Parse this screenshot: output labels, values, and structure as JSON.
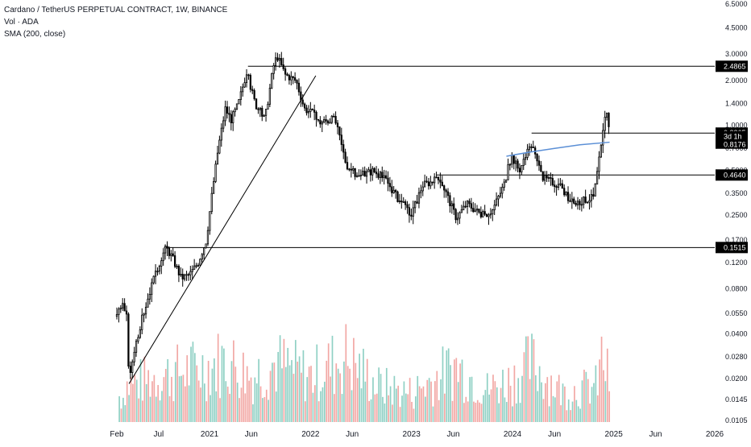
{
  "legend": {
    "symbol_line": "Cardano / TetherUS PERPETUAL CONTRACT, 1W, BINANCE",
    "volume_line": "Vol · ADA",
    "sma_line": "SMA (200, close)"
  },
  "colors": {
    "candle": "#000000",
    "trendline": "#000000",
    "sma": "#5b8fd6",
    "vol_up": "#8fd0c4",
    "vol_down": "#f2a7a4",
    "axis_text": "#131722",
    "badge_bg": "#000000",
    "badge_text": "#ffffff"
  },
  "chart_data": {
    "type": "line",
    "y_scale": "log",
    "y_range": [
      0.0105,
      6.5
    ],
    "y_tick_labels": [
      "6.5000",
      "4.5000",
      "3.0000",
      "2.0000",
      "1.4000",
      "1.0000",
      "0.7000",
      "0.5000",
      "0.3500",
      "0.2500",
      "0.1700",
      "0.1200",
      "0.0800",
      "0.0550",
      "0.0400",
      "0.0280",
      "0.0200",
      "0.0145",
      "0.0105"
    ],
    "x_tick_labels": [
      "Feb",
      "Jul",
      "2021",
      "Jun",
      "2022",
      "Jun",
      "2023",
      "Jun",
      "2024",
      "Jun",
      "2025",
      "Jun",
      "2026"
    ],
    "x_ticks": [
      "2020-02",
      "2020-07",
      "2021-01",
      "2021-06",
      "2022-01",
      "2022-06",
      "2023-01",
      "2023-06",
      "2024-01",
      "2024-06",
      "2025-01",
      "2025-06",
      "2026-01"
    ],
    "price_path": [
      {
        "date": "2020-02-01",
        "price": 0.055
      },
      {
        "date": "2020-02-20",
        "price": 0.062
      },
      {
        "date": "2020-03-10",
        "price": 0.05
      },
      {
        "date": "2020-03-16",
        "price": 0.018
      },
      {
        "date": "2020-04-01",
        "price": 0.03
      },
      {
        "date": "2020-05-01",
        "price": 0.05
      },
      {
        "date": "2020-06-01",
        "price": 0.08
      },
      {
        "date": "2020-06-20",
        "price": 0.1
      },
      {
        "date": "2020-07-10",
        "price": 0.13
      },
      {
        "date": "2020-07-28",
        "price": 0.152
      },
      {
        "date": "2020-08-20",
        "price": 0.13
      },
      {
        "date": "2020-09-20",
        "price": 0.095
      },
      {
        "date": "2020-10-20",
        "price": 0.1
      },
      {
        "date": "2020-11-20",
        "price": 0.12
      },
      {
        "date": "2020-12-20",
        "price": 0.17
      },
      {
        "date": "2021-01-10",
        "price": 0.35
      },
      {
        "date": "2021-02-01",
        "price": 0.7
      },
      {
        "date": "2021-02-27",
        "price": 1.3
      },
      {
        "date": "2021-03-20",
        "price": 1.1
      },
      {
        "date": "2021-04-15",
        "price": 1.4
      },
      {
        "date": "2021-05-15",
        "price": 2.3
      },
      {
        "date": "2021-06-15",
        "price": 1.4
      },
      {
        "date": "2021-07-20",
        "price": 1.1
      },
      {
        "date": "2021-08-20",
        "price": 2.5
      },
      {
        "date": "2021-09-02",
        "price": 2.95
      },
      {
        "date": "2021-10-01",
        "price": 2.2
      },
      {
        "date": "2021-11-10",
        "price": 2.0
      },
      {
        "date": "2021-12-10",
        "price": 1.3
      },
      {
        "date": "2022-01-10",
        "price": 1.2
      },
      {
        "date": "2022-01-30",
        "price": 1.05
      },
      {
        "date": "2022-03-30",
        "price": 1.1
      },
      {
        "date": "2022-05-10",
        "price": 0.55
      },
      {
        "date": "2022-06-20",
        "price": 0.45
      },
      {
        "date": "2022-08-15",
        "price": 0.5
      },
      {
        "date": "2022-10-01",
        "price": 0.43
      },
      {
        "date": "2022-11-15",
        "price": 0.32
      },
      {
        "date": "2022-12-31",
        "price": 0.25
      },
      {
        "date": "2023-02-10",
        "price": 0.4
      },
      {
        "date": "2023-04-15",
        "price": 0.44
      },
      {
        "date": "2023-06-12",
        "price": 0.24
      },
      {
        "date": "2023-07-20",
        "price": 0.3
      },
      {
        "date": "2023-09-15",
        "price": 0.25
      },
      {
        "date": "2023-10-20",
        "price": 0.27
      },
      {
        "date": "2023-12-01",
        "price": 0.4
      },
      {
        "date": "2023-12-28",
        "price": 0.63
      },
      {
        "date": "2024-01-25",
        "price": 0.5
      },
      {
        "date": "2024-03-10",
        "price": 0.75
      },
      {
        "date": "2024-04-15",
        "price": 0.45
      },
      {
        "date": "2024-06-15",
        "price": 0.4
      },
      {
        "date": "2024-08-05",
        "price": 0.3
      },
      {
        "date": "2024-10-20",
        "price": 0.33
      },
      {
        "date": "2024-11-20",
        "price": 0.8
      },
      {
        "date": "2024-12-03",
        "price": 1.33
      },
      {
        "date": "2024-12-17",
        "price": 0.94
      }
    ],
    "sma_series": [
      {
        "date": "2023-12-10",
        "value": 0.62
      },
      {
        "date": "2024-03-01",
        "value": 0.66
      },
      {
        "date": "2024-06-01",
        "value": 0.7
      },
      {
        "date": "2024-09-01",
        "value": 0.74
      },
      {
        "date": "2024-12-17",
        "value": 0.77
      }
    ],
    "trendline": {
      "start": {
        "date": "2020-03-16",
        "price": 0.0185
      },
      "end": {
        "date": "2022-01-20",
        "price": 2.15
      }
    },
    "levels": [
      {
        "price": 2.4865,
        "label": "2.4865",
        "from": "2021-05-20"
      },
      {
        "price": 0.8865,
        "label": "0.8865",
        "from": "2024-03-10"
      },
      {
        "price": 0.464,
        "label": "0.4640",
        "from": "2023-04-01"
      },
      {
        "price": 0.1515,
        "label": "0.1515",
        "from": "2020-07-20"
      }
    ],
    "price_badges": [
      {
        "price": 0.8865,
        "label": "0.8865"
      },
      {
        "price": 0.8176,
        "label": "0.8176"
      }
    ],
    "countdown_label": "3d 1h",
    "volume_profile": [
      {
        "date": "2020-03-01",
        "relative": 0.55
      },
      {
        "date": "2020-07-01",
        "relative": 0.7
      },
      {
        "date": "2021-01-01",
        "relative": 0.85
      },
      {
        "date": "2021-03-01",
        "relative": 0.95
      },
      {
        "date": "2021-06-01",
        "relative": 0.7
      },
      {
        "date": "2021-09-01",
        "relative": 0.9
      },
      {
        "date": "2022-01-01",
        "relative": 0.7
      },
      {
        "date": "2022-05-10",
        "relative": 1.0
      },
      {
        "date": "2022-09-01",
        "relative": 0.55
      },
      {
        "date": "2023-01-01",
        "relative": 0.45
      },
      {
        "date": "2023-06-10",
        "relative": 0.85
      },
      {
        "date": "2023-10-01",
        "relative": 0.5
      },
      {
        "date": "2024-01-01",
        "relative": 0.65
      },
      {
        "date": "2024-03-10",
        "relative": 0.9
      },
      {
        "date": "2024-07-01",
        "relative": 0.45
      },
      {
        "date": "2024-11-01",
        "relative": 0.55
      },
      {
        "date": "2024-11-20",
        "relative": 1.0
      },
      {
        "date": "2024-12-17",
        "relative": 0.6
      }
    ]
  }
}
